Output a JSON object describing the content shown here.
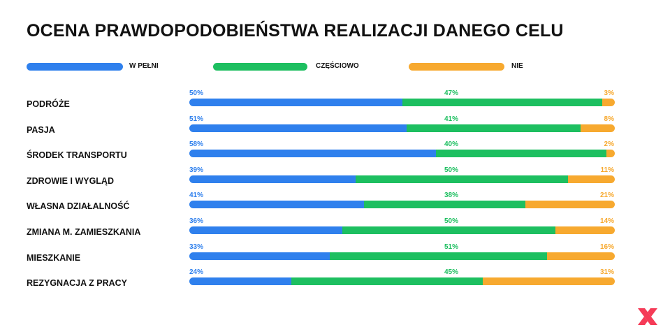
{
  "colors": {
    "w_pelni": "#2f80ed",
    "czesciowo": "#1dbf60",
    "nie": "#f7a92f"
  },
  "logo": {
    "icon": "brand-x-logo",
    "color": "#f53b57"
  },
  "chart_data": {
    "type": "bar",
    "orientation": "horizontal",
    "stacked": true,
    "title": "OCENA PRAWDOPODOBIEŃSTWA REALIZACJI DANEGO CELU",
    "legend_position": "top",
    "categories": [
      "PODRÓŻE",
      "PASJA",
      "ŚRODEK TRANSPORTU",
      "ZDROWIE I WYGLĄD",
      "WŁASNA DZIAŁALNOŚĆ",
      "ZMIANA M. ZAMIESZKANIA",
      "MIESZKANIE",
      "REZYGNACJA Z PRACY"
    ],
    "series": [
      {
        "name": "W PEŁNI",
        "values": [
          50,
          51,
          58,
          39,
          41,
          36,
          33,
          24
        ],
        "labels": [
          "50%",
          "51%",
          "58%",
          "39%",
          "41%",
          "36%",
          "33%",
          "24%"
        ]
      },
      {
        "name": "CZĘŚCIOWO",
        "values": [
          47,
          41,
          40,
          50,
          38,
          50,
          51,
          45
        ],
        "labels": [
          "47%",
          "41%",
          "40%",
          "50%",
          "38%",
          "50%",
          "51%",
          "45%"
        ]
      },
      {
        "name": "NIE",
        "values": [
          3,
          8,
          2,
          11,
          21,
          14,
          16,
          31
        ],
        "labels": [
          "3%",
          "8%",
          "2%",
          "11%",
          "21%",
          "14%",
          "16%",
          "31%"
        ]
      }
    ],
    "grid": false
  }
}
